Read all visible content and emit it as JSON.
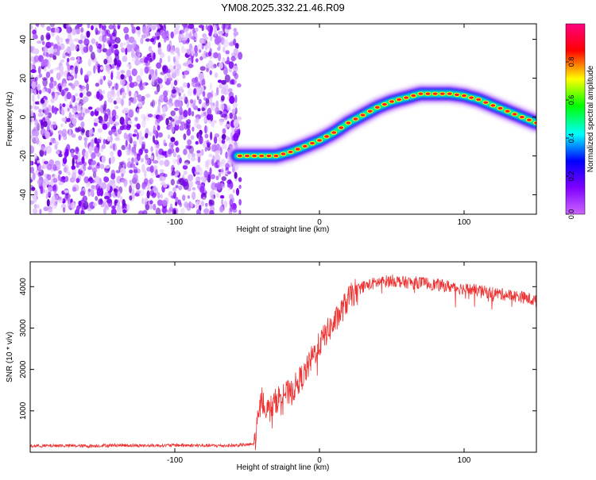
{
  "title": "YM08.2025.332.21.46.R09",
  "chart_data": [
    {
      "type": "heatmap",
      "xlabel": "Height of straight line (km)",
      "ylabel": "Frequency (Hz)",
      "xlim": [
        -200,
        150
      ],
      "ylim": [
        -50,
        48
      ],
      "xticks": [
        -100,
        0,
        100
      ],
      "yticks": [
        -40,
        -20,
        0,
        20,
        40
      ],
      "colorbar": {
        "label": "Normalized spectral amplitude",
        "range": [
          0,
          1
        ],
        "ticks": [
          "0.0",
          "0.2",
          "0.4",
          "0.6",
          "0.8"
        ],
        "colors": [
          "#cc66ff",
          "#8000ff",
          "#0000ff",
          "#00ffff",
          "#00ff00",
          "#ffff00",
          "#ff0000",
          "#ff0080"
        ]
      },
      "noise_region_x": [
        -200,
        -57
      ],
      "ridge": {
        "x": [
          -57,
          -50,
          -40,
          -30,
          -20,
          -10,
          0,
          10,
          20,
          30,
          40,
          50,
          60,
          70,
          80,
          90,
          100,
          110,
          120,
          130,
          140,
          150
        ],
        "y": [
          -20,
          -20,
          -20,
          -20,
          -18,
          -15,
          -12,
          -8,
          -3,
          1,
          5,
          8,
          10,
          12,
          12,
          12,
          11,
          9,
          6,
          3,
          0,
          -3
        ],
        "peak_amplitude": 0.95
      }
    },
    {
      "type": "line",
      "xlabel": "Height of straight line (km)",
      "ylabel": "SNR (10 * v/v)",
      "xlim": [
        -200,
        150
      ],
      "ylim": [
        0,
        4600
      ],
      "xticks": [
        -100,
        0,
        100
      ],
      "yticks": [
        1000,
        2000,
        3000,
        4000
      ],
      "color": "#ee3333",
      "series": [
        {
          "x": [
            -200,
            -180,
            -160,
            -140,
            -120,
            -100,
            -80,
            -60,
            -50,
            -45,
            -40,
            -35,
            -30,
            -25,
            -20,
            -15,
            -10,
            -5,
            0,
            5,
            10,
            15,
            20,
            25,
            30,
            35,
            40,
            50,
            60,
            70,
            80,
            90,
            100,
            110,
            120,
            130,
            140,
            150
          ],
          "y": [
            150,
            160,
            150,
            170,
            160,
            170,
            160,
            160,
            180,
            200,
            1300,
            1000,
            1250,
            1450,
            1400,
            1700,
            1900,
            2300,
            2600,
            2900,
            3100,
            3400,
            3700,
            3900,
            4000,
            4050,
            4100,
            4150,
            4100,
            4100,
            4050,
            4000,
            3950,
            3900,
            3850,
            3800,
            3750,
            3650
          ]
        }
      ]
    }
  ]
}
